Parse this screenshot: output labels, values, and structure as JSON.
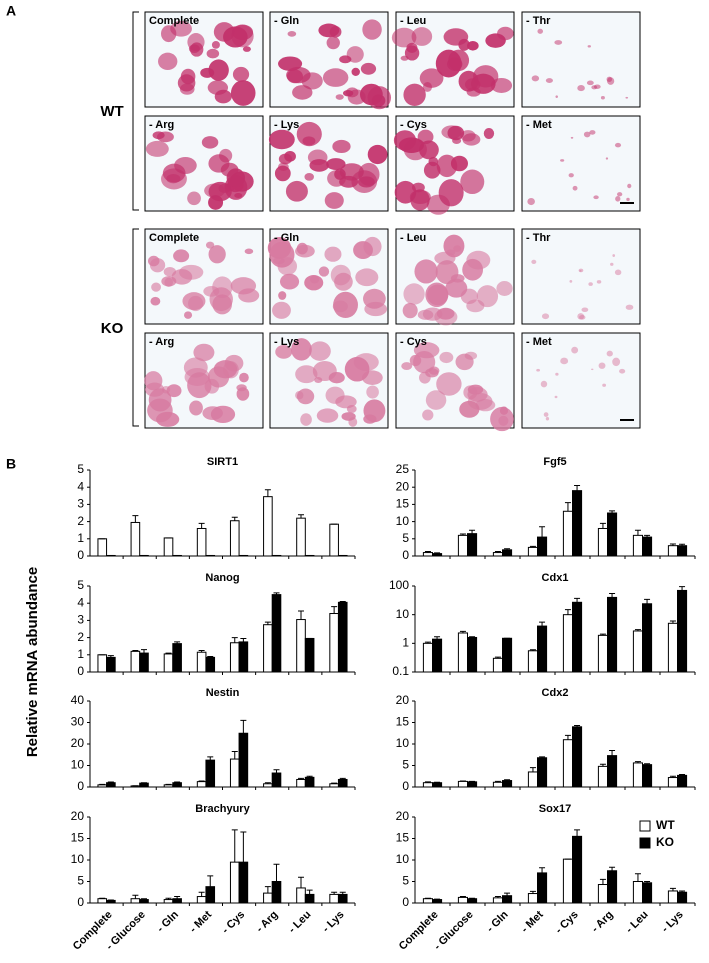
{
  "panel_a": {
    "label": "A",
    "groups": [
      {
        "name": "WT",
        "rows": [
          [
            "Complete",
            "- Gln",
            "- Leu",
            "- Thr"
          ],
          [
            "- Arg",
            "- Lys",
            "- Cys",
            "- Met"
          ]
        ]
      },
      {
        "name": "KO",
        "rows": [
          [
            "Complete",
            "- Gln",
            "- Leu",
            "- Thr"
          ],
          [
            "- Arg",
            "- Lys",
            "- Cys",
            "- Met"
          ]
        ]
      }
    ]
  },
  "panel_b": {
    "label": "B",
    "y_label": "Relative mRNA abundance"
  },
  "chart_data": [
    {
      "type": "bar",
      "title": "SIRT1",
      "ylim": [
        0,
        5
      ],
      "yticks": [
        0,
        1,
        2,
        3,
        4,
        5
      ],
      "series": [
        {
          "color": "#ffffff",
          "values": [
            1,
            1.95,
            1.05,
            1.6,
            2.05,
            3.45,
            2.2,
            1.85
          ],
          "errors": [
            0,
            0.4,
            0,
            0.3,
            0.2,
            0.4,
            0.2,
            0
          ]
        },
        {
          "color": "#000000",
          "values": [
            0.03,
            0.03,
            0.03,
            0.03,
            0.03,
            0.03,
            0.03,
            0.03
          ],
          "errors": [
            0,
            0,
            0,
            0,
            0,
            0,
            0,
            0
          ]
        }
      ]
    },
    {
      "type": "bar",
      "title": "Fgf5",
      "ylim": [
        0,
        25
      ],
      "yticks": [
        0,
        5,
        10,
        15,
        20,
        25
      ],
      "series": [
        {
          "color": "#ffffff",
          "values": [
            1,
            6,
            1,
            2.5,
            13,
            8,
            6,
            3
          ],
          "errors": [
            0.3,
            0.4,
            0.3,
            0.3,
            2.5,
            1.5,
            1.5,
            0.5
          ]
        },
        {
          "color": "#000000",
          "values": [
            0.7,
            6.5,
            1.8,
            5.5,
            19,
            12.5,
            5.5,
            3
          ],
          "errors": [
            0.2,
            1,
            0.3,
            3,
            1.5,
            0.6,
            0.5,
            0.4
          ]
        }
      ]
    },
    {
      "type": "bar",
      "title": "Nanog",
      "ylim": [
        0,
        5
      ],
      "yticks": [
        0,
        1,
        2,
        3,
        4,
        5
      ],
      "series": [
        {
          "color": "#ffffff",
          "values": [
            1,
            1.2,
            1.05,
            1.15,
            1.7,
            2.75,
            3.05,
            3.4
          ],
          "errors": [
            0,
            0.05,
            0.05,
            0.1,
            0.3,
            0.15,
            0.5,
            0.4
          ]
        },
        {
          "color": "#000000",
          "values": [
            0.85,
            1.1,
            1.65,
            0.85,
            1.75,
            4.5,
            1.95,
            4.05
          ],
          "errors": [
            0.1,
            0.2,
            0.1,
            0.05,
            0.2,
            0.1,
            0,
            0.05
          ]
        }
      ]
    },
    {
      "type": "bar",
      "title": "Cdx1",
      "log_scale": true,
      "ylim": [
        0.1,
        100
      ],
      "yticks": [
        0.1,
        1,
        10,
        100
      ],
      "series": [
        {
          "color": "#ffffff",
          "values": [
            1,
            2.3,
            0.3,
            0.55,
            10,
            1.9,
            2.7,
            5
          ],
          "errors": [
            0.1,
            0.3,
            0.03,
            0.05,
            5,
            0.2,
            0.3,
            1
          ]
        },
        {
          "color": "#000000",
          "values": [
            1.4,
            1.6,
            1.5,
            4,
            27,
            40,
            24,
            70
          ],
          "errors": [
            0.3,
            0.1,
            0,
            1.5,
            10,
            15,
            10,
            25
          ]
        }
      ]
    },
    {
      "type": "bar",
      "title": "Nestin",
      "ylim": [
        0,
        40
      ],
      "yticks": [
        0,
        10,
        20,
        30,
        40
      ],
      "series": [
        {
          "color": "#ffffff",
          "values": [
            1,
            0.5,
            1,
            2.5,
            13,
            1.5,
            3.5,
            1.5
          ],
          "errors": [
            0.2,
            0.1,
            0.2,
            0.3,
            3.5,
            0.5,
            0.5,
            0.3
          ]
        },
        {
          "color": "#000000",
          "values": [
            2,
            1.8,
            2,
            12.5,
            25,
            6.5,
            4.5,
            3.5
          ],
          "errors": [
            0.3,
            0.2,
            0.3,
            1.5,
            6,
            1.5,
            0.5,
            0.5
          ]
        }
      ]
    },
    {
      "type": "bar",
      "title": "Cdx2",
      "ylim": [
        0,
        20
      ],
      "yticks": [
        0,
        5,
        10,
        15,
        20
      ],
      "series": [
        {
          "color": "#ffffff",
          "values": [
            1,
            1.3,
            1.1,
            3.5,
            11,
            4.8,
            5.6,
            2.2
          ],
          "errors": [
            0.2,
            0.1,
            0.2,
            1,
            1,
            0.5,
            0.3,
            0.3
          ]
        },
        {
          "color": "#000000",
          "values": [
            1,
            1.2,
            1.5,
            6.8,
            14,
            7.3,
            5.2,
            2.7
          ],
          "errors": [
            0.1,
            0.1,
            0.2,
            0.2,
            0.3,
            1.2,
            0.2,
            0.2
          ]
        }
      ]
    },
    {
      "type": "bar",
      "title": "Brachyury",
      "ylim": [
        0,
        20
      ],
      "yticks": [
        0,
        5,
        10,
        15,
        20
      ],
      "categories": [
        "Complete",
        "- Glucose",
        "- Gln",
        "- Met",
        "- Cys",
        "- Arg",
        "- Leu",
        "- Lys"
      ],
      "category_colors": [
        "#000000",
        "#000000",
        "#000000",
        "#e02020",
        "#000000",
        "#000000",
        "#000000",
        "#000000"
      ],
      "series": [
        {
          "color": "#ffffff",
          "values": [
            1,
            1,
            0.8,
            1.5,
            9.5,
            2.3,
            3.5,
            2
          ],
          "errors": [
            0.1,
            0.8,
            0.3,
            1,
            7.5,
            1.5,
            2.5,
            0.5
          ]
        },
        {
          "color": "#000000",
          "values": [
            0.6,
            0.8,
            1,
            3.8,
            9.5,
            5,
            2,
            2
          ],
          "errors": [
            0.1,
            0.2,
            0.5,
            2.5,
            7,
            4,
            1,
            0.5
          ]
        }
      ]
    },
    {
      "type": "bar",
      "title": "Sox17",
      "ylim": [
        0,
        20
      ],
      "yticks": [
        0,
        5,
        10,
        15,
        20
      ],
      "legend": "upper right",
      "categories": [
        "Complete",
        "- Glucose",
        "- Gln",
        "- Met",
        "- Cys",
        "- Arg",
        "- Leu",
        "- Lys"
      ],
      "category_colors": [
        "#000000",
        "#000000",
        "#000000",
        "#e02020",
        "#000000",
        "#000000",
        "#000000",
        "#000000"
      ],
      "series": [
        {
          "name": "WT",
          "color": "#ffffff",
          "values": [
            1,
            1.3,
            1.2,
            2.2,
            10.2,
            4.3,
            5,
            2.8
          ],
          "errors": [
            0.1,
            0.2,
            0.3,
            0.5,
            0,
            1.2,
            1.8,
            0.6
          ]
        },
        {
          "name": "KO",
          "color": "#000000",
          "values": [
            0.8,
            1,
            1.7,
            7,
            15.5,
            7.5,
            4.7,
            2.5
          ],
          "errors": [
            0.1,
            0.1,
            0.6,
            1.2,
            1.5,
            0.8,
            0.3,
            0.3
          ]
        }
      ]
    }
  ]
}
